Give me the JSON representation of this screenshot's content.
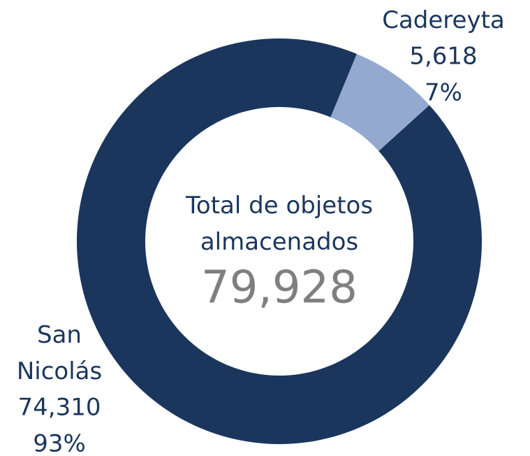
{
  "chart_data": {
    "type": "donut",
    "center_text": "Total de objetos almacenados",
    "total": 79928,
    "total_label": "79,928",
    "categories": [
      "Cadereyta",
      "San Nicolás"
    ],
    "values": [
      5618,
      74310
    ],
    "value_labels": [
      "5,618",
      "74,310"
    ],
    "percentages": [
      7,
      93
    ],
    "percentage_labels": [
      "7%",
      "93%"
    ],
    "colors": [
      "#94a9d0",
      "#1b365d"
    ]
  }
}
